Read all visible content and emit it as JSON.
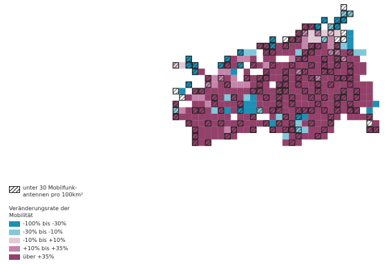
{
  "colors": {
    "class1": "#1c90b5",
    "class2": "#82c8dc",
    "class3": "#e3c9d6",
    "class4": "#c585ab",
    "class5": "#93416b",
    "hatch": "#1e1e1e",
    "none": "#ffffff"
  },
  "legend": {
    "hatch_label": "unter 30 Mobilfunk-antennen pro 100km²",
    "title": "Veränderungsrate der Mobilität",
    "classes": [
      {
        "label": "-100% bis -30%"
      },
      {
        "label": "-30% bis -10%"
      },
      {
        "label": "-10% bis +10%"
      },
      {
        "label": "+10% bis +35%"
      },
      {
        "label": "über +35%"
      }
    ]
  },
  "grid": {
    "rows": [
      "..................................F......",
      "..................................BB.....",
      "...............................A.AA......",
      "............................EEA.BA.......",
      "...........................EDCDCCCFA.....",
      ".......................A.FEEDCCBDFFA.....",
      ".....................EEHEEEEDEEEDEBA.....",
      "..................ABB.EEEEEBEEEEDDEEBB...",
      "..........A.....AEDDE.EE..DEEEEEEEDEE....",
      "........CCAA...AEEA.EEDEEEEEEEEEEEEEEE...",
      "...........AE..DDA.E..EEEEEDEEEEEEEEEE...",
      ".............EDDED.EEEEEEEEEEEDEEEEEEFF..",
      "..........A..DDEEDDDEEE.EEEEEEEEEEEEEEE..",
      "........FA.EEEEEEEEEEEEEEEEEEEEEEEEEEEE..",
      ".........FEDDEEEBEEBAEEEEEEEEEEEEEEEEEE..",
      "........EF.EEDEEEEEAAEEEEEEEEEEEEEEEEEEA.",
      "........BDEEEEBEAEAAABEEEEEEEEEEEEEEEFAF.",
      "........EEEEEEEEE.EEE..EBEEAAEEEEE.EEEEF.",
      "..........EEEEEEEEEEEEEAEEEBEEEEE.....FE.",
      "...........EEEEEDEEEE..EEEEBBEEEE.....EE.",
      "...........EEEEEEE.......BEEEEEE.........",
      "...........EEE...........EEE............."
    ],
    "hatched_rows": [
      "..................................x......",
      "..................................xx.....",
      "...............................x.xx......",
      "............................xxx.xx.......",
      "...........................xx.x.x.x......",
      ".......................x.xxx...x.xx......",
      ".....................xxx.x...xx..x.......",
      "..................x...xx....xx..xx.x.....",
      "..........x.....x....x.....xx..x.xx......",
      "........x.xx...xx.x.x..x..x..x.x.x.x.....",
      "...........x..x.......x..x.xx..xx..x.....",
      ".............x.x...x.xx..x.x.xx..xxx.....",
      "..........x..x..x....x.xxx.x..x.x..x.....",
      "........x..xx.......xx..xx..x.x...x.x....",
      ".........x....x..x....x.x.x..x.x.xx.x....",
      "........x.....x...x.....x.x...x..x.x.....",
      "........x..xx..x..x..x.xx..xxx.x.x.xx....",
      "........x........x..x....x.x....x.....x..",
      "..........x..x.x..x...x.x.x..x..x.....x..",
      "...........x.....x..x..x.xxx...x......xx.",
      "...........x....x..........x..x..........",
      "...........x.x............x.............."
    ]
  }
}
